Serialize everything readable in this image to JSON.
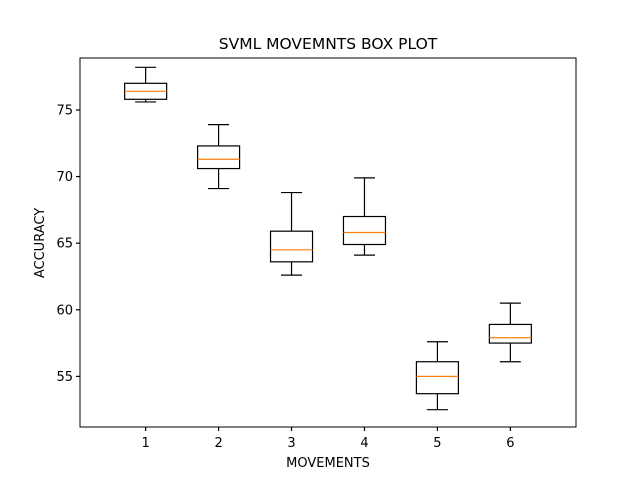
{
  "chart_data": {
    "type": "box",
    "title": "SVML MOVEMNTS BOX PLOT",
    "xlabel": "MOVEMENTS",
    "ylabel": "ACCURACY",
    "categories": [
      "1",
      "2",
      "3",
      "4",
      "5",
      "6"
    ],
    "ylim": [
      51.2,
      78.9
    ],
    "yticks": [
      55,
      60,
      65,
      70,
      75
    ],
    "ytick_labels": [
      "55",
      "60",
      "65",
      "70",
      "75"
    ],
    "boxes": [
      {
        "category": "1",
        "whisker_low": 75.6,
        "q1": 75.8,
        "median": 76.4,
        "q3": 77.0,
        "whisker_high": 78.2
      },
      {
        "category": "2",
        "whisker_low": 69.1,
        "q1": 70.6,
        "median": 71.3,
        "q3": 72.3,
        "whisker_high": 73.9
      },
      {
        "category": "3",
        "whisker_low": 62.6,
        "q1": 63.6,
        "median": 64.5,
        "q3": 65.9,
        "whisker_high": 68.8
      },
      {
        "category": "4",
        "whisker_low": 64.1,
        "q1": 64.9,
        "median": 65.8,
        "q3": 67.0,
        "whisker_high": 69.9
      },
      {
        "category": "5",
        "whisker_low": 52.5,
        "q1": 53.7,
        "median": 55.0,
        "q3": 56.1,
        "whisker_high": 57.6
      },
      {
        "category": "6",
        "whisker_low": 56.1,
        "q1": 57.5,
        "median": 57.9,
        "q3": 58.9,
        "whisker_high": 60.5
      }
    ],
    "colors": {
      "box": "#000000",
      "median": "#ff7f0e",
      "axes": "#000000"
    },
    "grid": false
  }
}
